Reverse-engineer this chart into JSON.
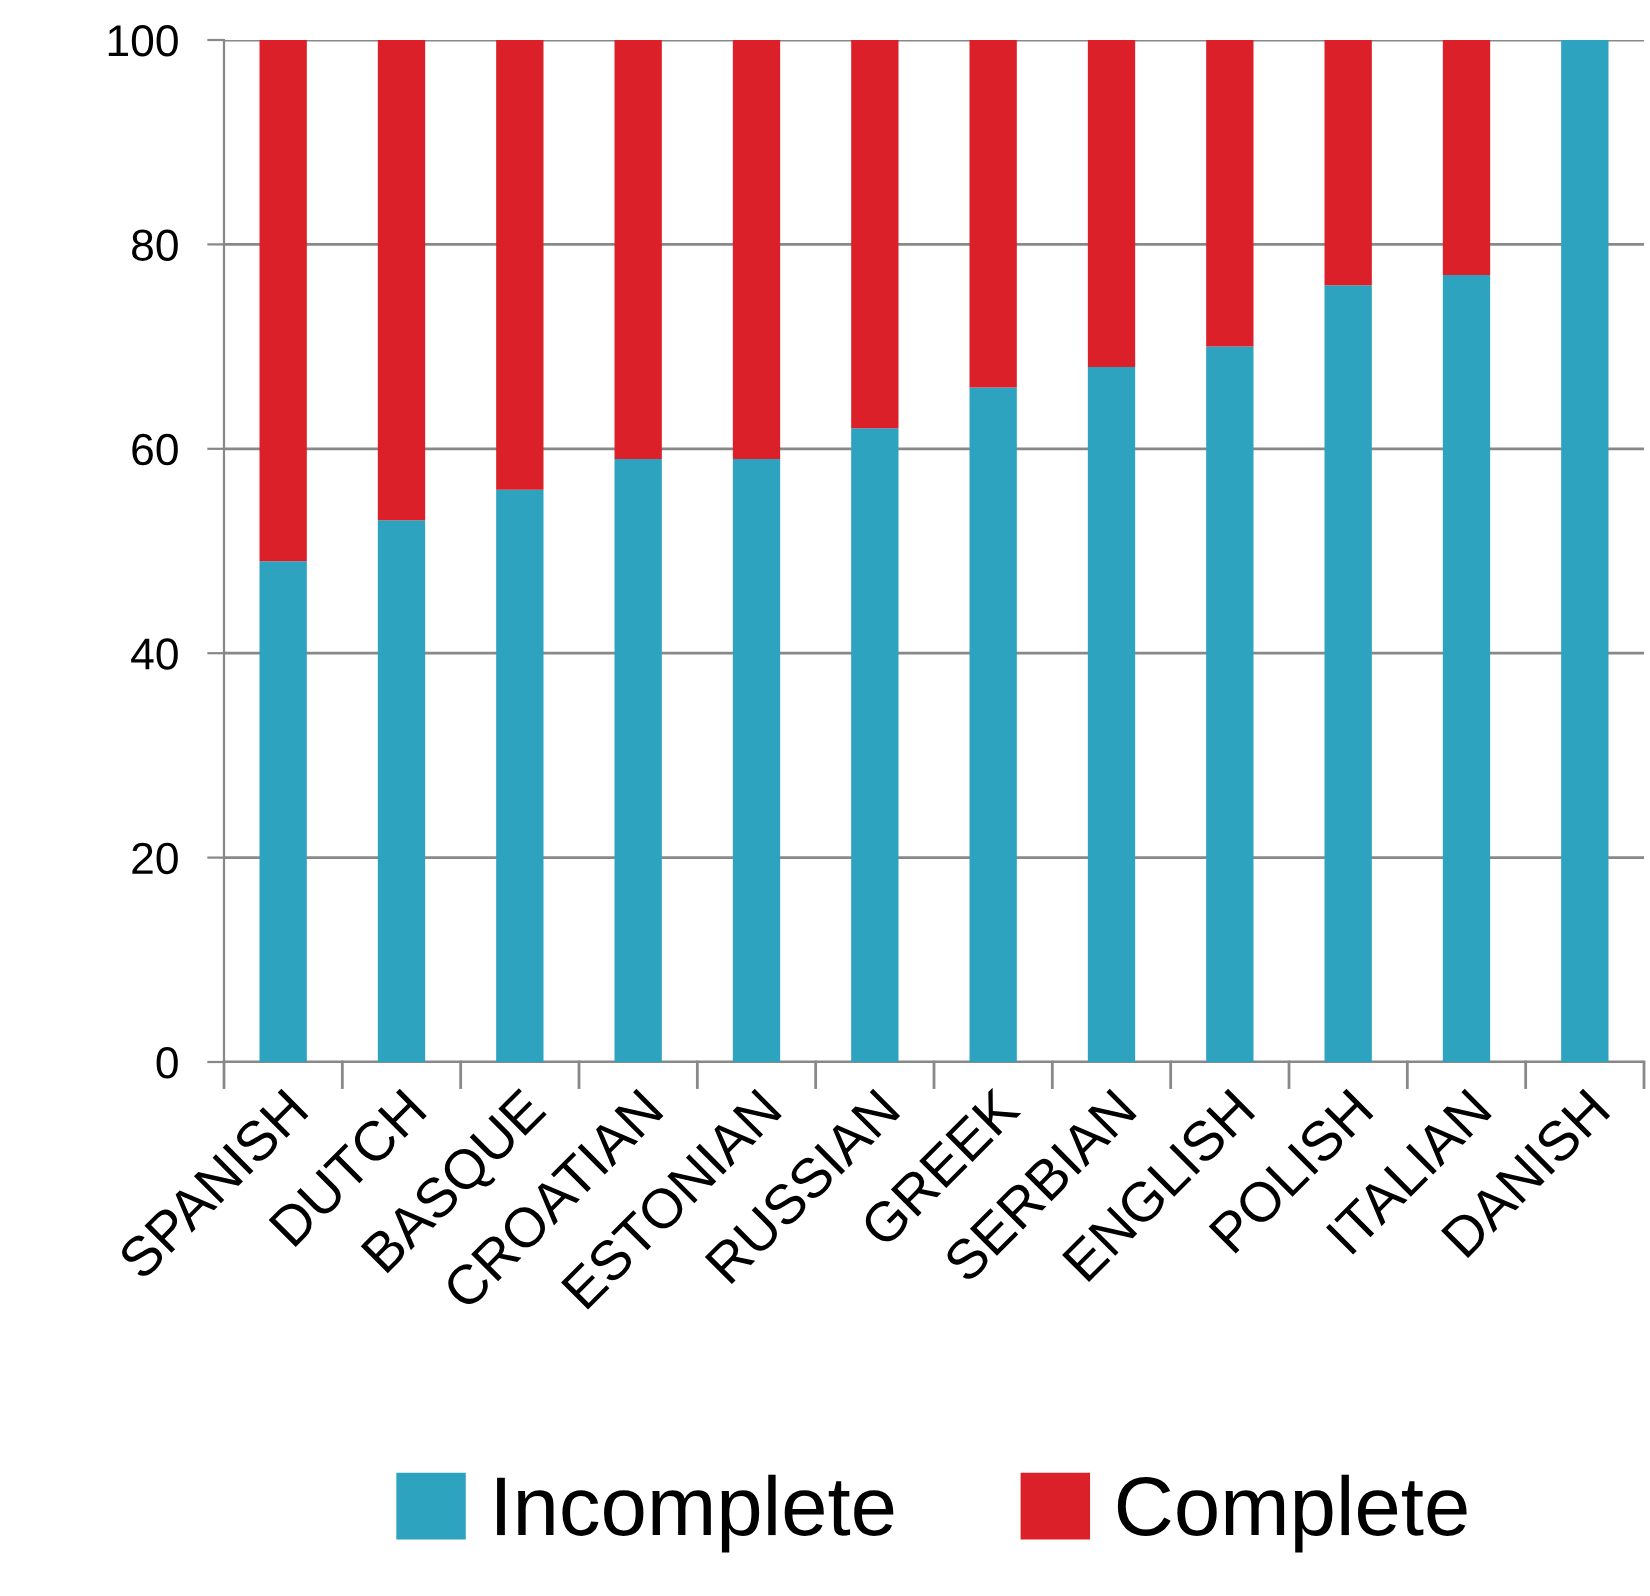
{
  "chart_data": {
    "type": "bar",
    "stacked": true,
    "categories": [
      "SPANISH",
      "DUTCH",
      "BASQUE",
      "CROATIAN",
      "ESTONIAN",
      "RUSSIAN",
      "GREEK",
      "SERBIAN",
      "ENGLISH",
      "POLISH",
      "ITALIAN",
      "DANISH"
    ],
    "series": [
      {
        "name": "Incomplete",
        "color": "#2ea3c0",
        "values": [
          49,
          53,
          56,
          59,
          59,
          62,
          66,
          68,
          70,
          76,
          77,
          100
        ]
      },
      {
        "name": "Complete",
        "color": "#dc202a",
        "values": [
          51,
          47,
          44,
          41,
          41,
          38,
          34,
          32,
          30,
          24,
          23,
          0
        ]
      }
    ],
    "ylim": [
      0,
      100
    ],
    "yticks": [
      0,
      20,
      40,
      60,
      80,
      100
    ],
    "grid": "y",
    "legend": "bottom"
  }
}
